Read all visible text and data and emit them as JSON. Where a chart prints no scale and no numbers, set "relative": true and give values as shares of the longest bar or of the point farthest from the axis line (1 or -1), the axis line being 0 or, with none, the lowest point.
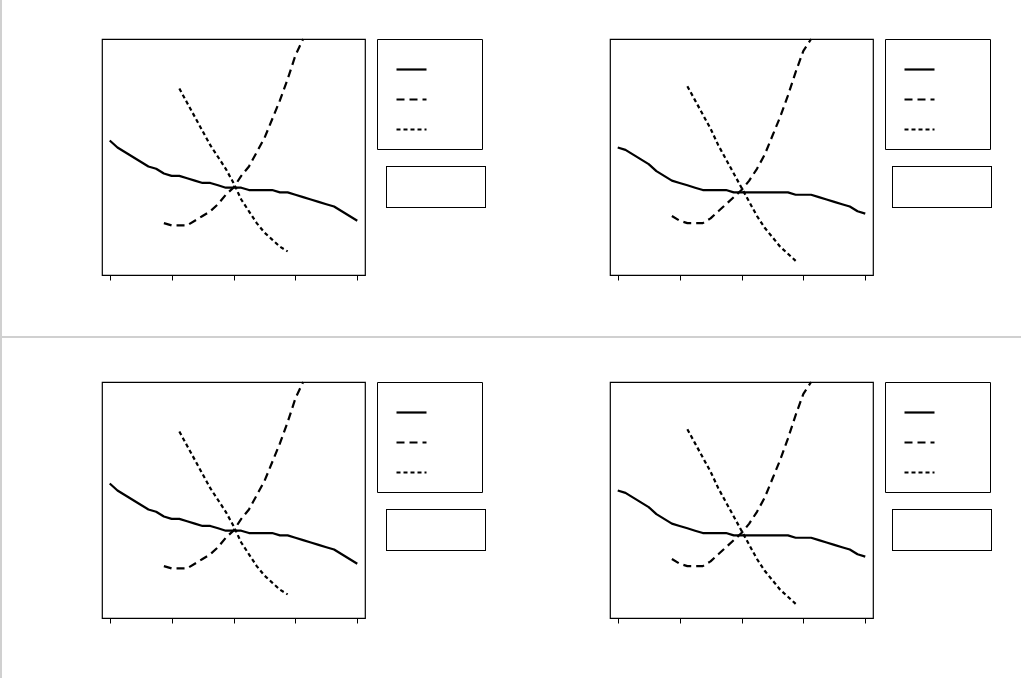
{
  "chart_data": [
    {
      "type": "line",
      "relative": true,
      "categories": [
        null,
        null,
        null,
        null,
        null,
        null,
        null,
        null,
        null,
        null,
        null,
        null,
        null,
        null,
        null,
        null,
        null,
        null,
        null,
        null,
        null,
        null,
        null,
        null,
        null,
        null,
        null,
        null,
        null,
        null,
        null,
        null,
        null
      ],
      "series": [
        {
          "color": "#000000",
          "line_style": "solid",
          "values": [
            0.57,
            0.54,
            0.52,
            0.5,
            0.48,
            0.46,
            0.45,
            0.43,
            0.42,
            0.42,
            0.41,
            0.4,
            0.39,
            0.39,
            0.38,
            0.37,
            0.37,
            0.37,
            0.36,
            0.36,
            0.36,
            0.36,
            0.35,
            0.35,
            0.34,
            0.33,
            0.32,
            0.31,
            0.3,
            0.29,
            0.27,
            0.25,
            0.23
          ]
        },
        {
          "color": "#000000",
          "line_style": "dashed",
          "values": [
            null,
            null,
            null,
            null,
            null,
            null,
            null,
            0.22,
            0.21,
            0.21,
            0.21,
            0.23,
            0.25,
            0.27,
            0.3,
            0.34,
            0.37,
            0.42,
            0.46,
            0.52,
            0.58,
            0.66,
            0.74,
            0.83,
            0.93,
            1.0,
            null,
            null,
            null,
            null,
            null,
            null,
            null
          ]
        },
        {
          "color": "#000000",
          "line_style": "dotted",
          "values": [
            null,
            null,
            null,
            null,
            null,
            null,
            null,
            null,
            null,
            0.79,
            0.73,
            0.67,
            0.61,
            0.55,
            0.5,
            0.45,
            0.39,
            0.32,
            0.27,
            0.22,
            0.18,
            0.15,
            0.12,
            0.1,
            null,
            null,
            null,
            null,
            null,
            null,
            null,
            null,
            null
          ]
        }
      ]
    },
    {
      "type": "line",
      "relative": true,
      "categories": [
        null,
        null,
        null,
        null,
        null,
        null,
        null,
        null,
        null,
        null,
        null,
        null,
        null,
        null,
        null,
        null,
        null,
        null,
        null,
        null,
        null,
        null,
        null,
        null,
        null,
        null,
        null,
        null,
        null,
        null,
        null,
        null,
        null
      ],
      "series": [
        {
          "color": "#000000",
          "line_style": "solid",
          "values": [
            0.54,
            0.53,
            0.51,
            0.49,
            0.47,
            0.44,
            0.42,
            0.4,
            0.39,
            0.38,
            0.37,
            0.36,
            0.36,
            0.36,
            0.36,
            0.35,
            0.35,
            0.35,
            0.35,
            0.35,
            0.35,
            0.35,
            0.35,
            0.34,
            0.34,
            0.34,
            0.33,
            0.32,
            0.31,
            0.3,
            0.29,
            0.27,
            0.26
          ]
        },
        {
          "color": "#000000",
          "line_style": "dashed",
          "values": [
            null,
            null,
            null,
            null,
            null,
            null,
            null,
            0.25,
            0.23,
            0.22,
            0.22,
            0.22,
            0.24,
            0.27,
            0.3,
            0.33,
            0.36,
            0.4,
            0.45,
            0.51,
            0.59,
            0.67,
            0.76,
            0.86,
            0.95,
            1.0,
            null,
            null,
            null,
            null,
            null,
            null,
            null
          ]
        },
        {
          "color": "#000000",
          "line_style": "dotted",
          "values": [
            null,
            null,
            null,
            null,
            null,
            null,
            null,
            null,
            null,
            0.8,
            0.74,
            0.68,
            0.62,
            0.55,
            0.49,
            0.43,
            0.37,
            0.31,
            0.25,
            0.2,
            0.16,
            0.12,
            0.09,
            0.06,
            null,
            null,
            null,
            null,
            null,
            null,
            null,
            null,
            null
          ]
        }
      ]
    },
    {
      "type": "line",
      "relative": true,
      "categories": [
        null,
        null,
        null,
        null,
        null,
        null,
        null,
        null,
        null,
        null,
        null,
        null,
        null,
        null,
        null,
        null,
        null,
        null,
        null,
        null,
        null,
        null,
        null,
        null,
        null,
        null,
        null,
        null,
        null,
        null,
        null,
        null,
        null
      ],
      "series": [
        {
          "color": "#000000",
          "line_style": "solid",
          "values": [
            0.57,
            0.54,
            0.52,
            0.5,
            0.48,
            0.46,
            0.45,
            0.43,
            0.42,
            0.42,
            0.41,
            0.4,
            0.39,
            0.39,
            0.38,
            0.37,
            0.37,
            0.37,
            0.36,
            0.36,
            0.36,
            0.36,
            0.35,
            0.35,
            0.34,
            0.33,
            0.32,
            0.31,
            0.3,
            0.29,
            0.27,
            0.25,
            0.23
          ]
        },
        {
          "color": "#000000",
          "line_style": "dashed",
          "values": [
            null,
            null,
            null,
            null,
            null,
            null,
            null,
            0.22,
            0.21,
            0.21,
            0.21,
            0.23,
            0.25,
            0.27,
            0.3,
            0.34,
            0.37,
            0.42,
            0.46,
            0.52,
            0.58,
            0.66,
            0.74,
            0.83,
            0.93,
            1.0,
            null,
            null,
            null,
            null,
            null,
            null,
            null
          ]
        },
        {
          "color": "#000000",
          "line_style": "dotted",
          "values": [
            null,
            null,
            null,
            null,
            null,
            null,
            null,
            null,
            null,
            0.79,
            0.73,
            0.67,
            0.61,
            0.55,
            0.5,
            0.45,
            0.39,
            0.32,
            0.27,
            0.22,
            0.18,
            0.15,
            0.12,
            0.1,
            null,
            null,
            null,
            null,
            null,
            null,
            null,
            null,
            null
          ]
        }
      ]
    },
    {
      "type": "line",
      "relative": true,
      "categories": [
        null,
        null,
        null,
        null,
        null,
        null,
        null,
        null,
        null,
        null,
        null,
        null,
        null,
        null,
        null,
        null,
        null,
        null,
        null,
        null,
        null,
        null,
        null,
        null,
        null,
        null,
        null,
        null,
        null,
        null,
        null,
        null,
        null
      ],
      "series": [
        {
          "color": "#000000",
          "line_style": "solid",
          "values": [
            0.54,
            0.53,
            0.51,
            0.49,
            0.47,
            0.44,
            0.42,
            0.4,
            0.39,
            0.38,
            0.37,
            0.36,
            0.36,
            0.36,
            0.36,
            0.35,
            0.35,
            0.35,
            0.35,
            0.35,
            0.35,
            0.35,
            0.35,
            0.34,
            0.34,
            0.34,
            0.33,
            0.32,
            0.31,
            0.3,
            0.29,
            0.27,
            0.26
          ]
        },
        {
          "color": "#000000",
          "line_style": "dashed",
          "values": [
            null,
            null,
            null,
            null,
            null,
            null,
            null,
            0.25,
            0.23,
            0.22,
            0.22,
            0.22,
            0.24,
            0.27,
            0.3,
            0.33,
            0.36,
            0.4,
            0.45,
            0.51,
            0.59,
            0.67,
            0.76,
            0.86,
            0.95,
            1.0,
            null,
            null,
            null,
            null,
            null,
            null,
            null
          ]
        },
        {
          "color": "#000000",
          "line_style": "dotted",
          "values": [
            null,
            null,
            null,
            null,
            null,
            null,
            null,
            null,
            null,
            0.8,
            0.74,
            0.68,
            0.62,
            0.55,
            0.49,
            0.43,
            0.37,
            0.31,
            0.25,
            0.2,
            0.16,
            0.12,
            0.09,
            0.06,
            null,
            null,
            null,
            null,
            null,
            null,
            null,
            null,
            null
          ]
        }
      ]
    }
  ]
}
